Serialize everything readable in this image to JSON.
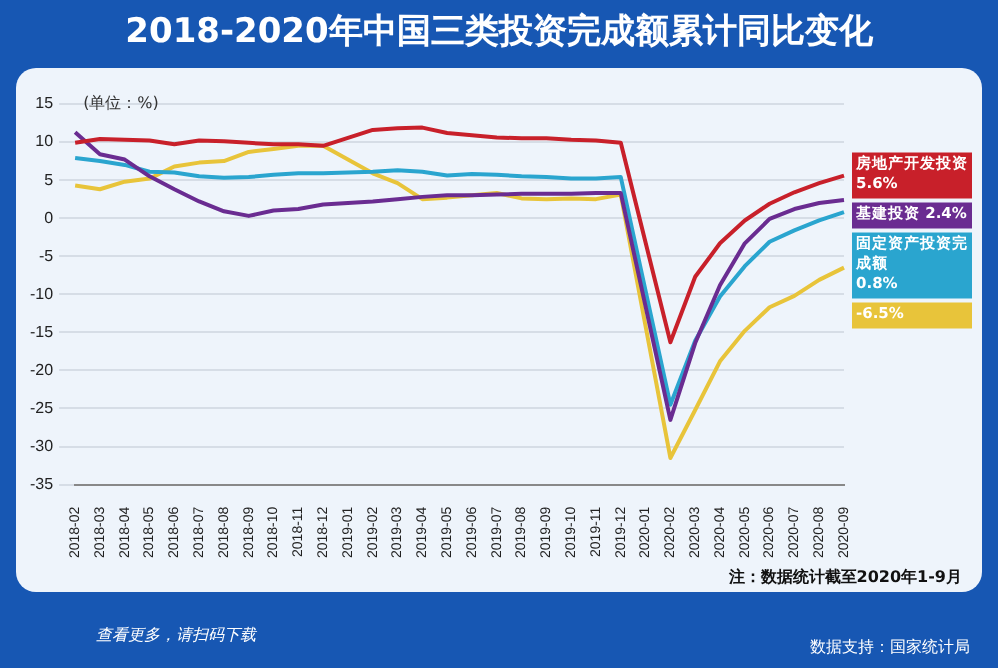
{
  "chart_data": {
    "type": "line",
    "title": "2018-2020年中国三类投资完成额累计同比变化",
    "ylabel": "(单位：%)",
    "categories": [
      "2018-02",
      "2018-03",
      "2018-04",
      "2018-05",
      "2018-06",
      "2018-07",
      "2018-08",
      "2018-09",
      "2018-10",
      "2018-11",
      "2018-12",
      "2019-01",
      "2019-02",
      "2019-03",
      "2019-04",
      "2019-05",
      "2019-06",
      "2019-07",
      "2019-08",
      "2019-09",
      "2019-10",
      "2019-11",
      "2019-12",
      "2020-01",
      "2020-02",
      "2020-03",
      "2020-04",
      "2020-05",
      "2020-06",
      "2020-07",
      "2020-08",
      "2020-09"
    ],
    "series": [
      {
        "name": "房地产开发投资 5.6%",
        "color": "#c8202a",
        "values": [
          9.9,
          10.4,
          10.3,
          10.2,
          9.7,
          10.2,
          10.1,
          9.9,
          9.7,
          9.7,
          9.5,
          null,
          11.6,
          11.8,
          11.9,
          11.2,
          10.9,
          10.6,
          10.5,
          10.5,
          10.3,
          10.2,
          9.9,
          null,
          -16.3,
          -7.7,
          -3.3,
          -0.3,
          1.9,
          3.4,
          4.6,
          5.6
        ]
      },
      {
        "name": "基建投资 2.4%",
        "color": "#6a2c91",
        "values": [
          11.3,
          8.4,
          7.7,
          5.5,
          3.8,
          2.2,
          0.9,
          0.3,
          1.0,
          1.2,
          1.8,
          null,
          2.2,
          2.5,
          2.8,
          3.0,
          3.0,
          3.1,
          3.2,
          3.2,
          3.2,
          3.3,
          3.3,
          null,
          -26.5,
          -16.4,
          -8.8,
          -3.3,
          -0.1,
          1.2,
          2.0,
          2.4
        ]
      },
      {
        "name": "固定资产投资完成额 0.8%",
        "color": "#2aa5cf",
        "values": [
          7.9,
          7.5,
          7.0,
          6.1,
          6.0,
          5.5,
          5.3,
          5.4,
          5.7,
          5.9,
          5.9,
          null,
          6.1,
          6.3,
          6.1,
          5.6,
          5.8,
          5.7,
          5.5,
          5.4,
          5.2,
          5.2,
          5.4,
          null,
          -24.5,
          -16.1,
          -10.3,
          -6.3,
          -3.1,
          -1.6,
          -0.3,
          0.8
        ]
      },
      {
        "name": "-6.5%",
        "color": "#e8c43a",
        "values": [
          4.3,
          3.8,
          4.8,
          5.2,
          6.8,
          7.3,
          7.5,
          8.7,
          9.1,
          9.5,
          9.5,
          null,
          5.9,
          4.6,
          2.5,
          2.7,
          3.0,
          3.3,
          2.6,
          2.5,
          2.6,
          2.5,
          3.1,
          null,
          -31.5,
          -25.2,
          -18.8,
          -14.8,
          -11.7,
          -10.2,
          -8.1,
          -6.5
        ]
      }
    ],
    "ylim": [
      -35,
      15
    ],
    "yticks": [
      -35,
      -30,
      -25,
      -20,
      -15,
      -10,
      -5,
      0,
      5,
      10,
      15
    ],
    "grid": "y",
    "legend": false,
    "marker": "none",
    "line_style": "solid",
    "annotations": [
      "注：数据统计截至2020年1-9月",
      "查看更多，请扫码下载",
      "数据支持：国家统计局"
    ]
  }
}
